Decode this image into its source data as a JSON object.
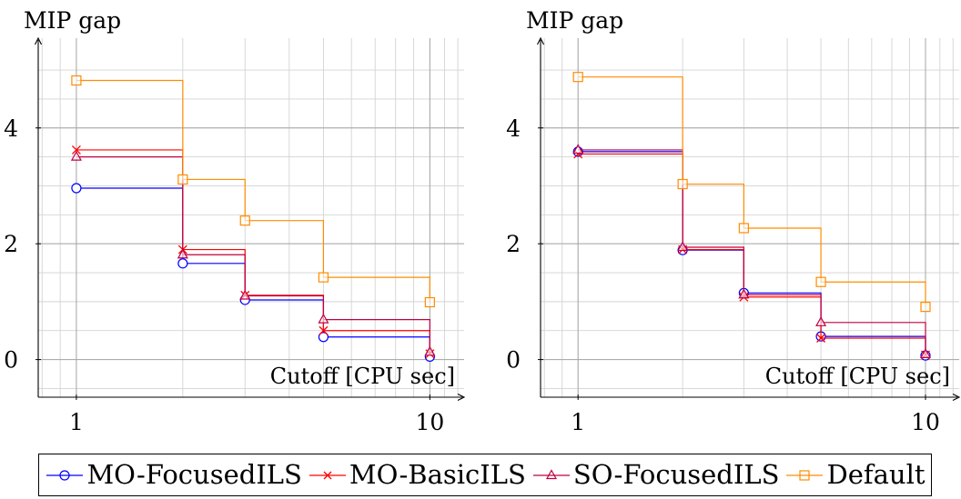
{
  "chart_data": [
    {
      "type": "line",
      "step": "post",
      "ylabel": "MIP gap",
      "xlabel": "Cutoff [CPU sec]",
      "xscale": "log",
      "xlim": [
        0.78,
        12.5
      ],
      "ylim": [
        -0.65,
        5.55
      ],
      "xticks": [
        {
          "value": 1,
          "label": "1"
        },
        {
          "value": 10,
          "label": "10"
        }
      ],
      "yticks": [
        {
          "value": 0,
          "label": "0"
        },
        {
          "value": 2,
          "label": "2"
        },
        {
          "value": 4,
          "label": "4"
        }
      ],
      "grid": true,
      "x": [
        1,
        2,
        3,
        5,
        10
      ],
      "series": [
        {
          "name": "MO-FocusedILS",
          "color": "#0000ff",
          "marker": "circle",
          "values": [
            2.96,
            1.66,
            1.03,
            0.39,
            0.05
          ]
        },
        {
          "name": "MO-BasicILS",
          "color": "#ff0000",
          "marker": "x",
          "values": [
            3.62,
            1.9,
            1.11,
            0.5,
            0.1
          ]
        },
        {
          "name": "SO-FocusedILS",
          "color": "#bf0040",
          "marker": "triangle",
          "values": [
            3.5,
            1.81,
            1.1,
            0.69,
            0.13
          ]
        },
        {
          "name": "Default",
          "color": "#ff8c00",
          "marker": "square",
          "values": [
            4.82,
            3.11,
            2.4,
            1.42,
            0.99
          ]
        }
      ]
    },
    {
      "type": "line",
      "step": "post",
      "ylabel": "MIP gap",
      "xlabel": "Cutoff [CPU sec]",
      "xscale": "log",
      "xlim": [
        0.78,
        12.5
      ],
      "ylim": [
        -0.65,
        5.55
      ],
      "xticks": [
        {
          "value": 1,
          "label": "1"
        },
        {
          "value": 10,
          "label": "10"
        }
      ],
      "yticks": [
        {
          "value": 0,
          "label": "0"
        },
        {
          "value": 2,
          "label": "2"
        },
        {
          "value": 4,
          "label": "4"
        }
      ],
      "grid": true,
      "x": [
        1,
        2,
        3,
        5,
        10
      ],
      "series": [
        {
          "name": "MO-FocusedILS",
          "color": "#0000ff",
          "marker": "circle",
          "values": [
            3.59,
            1.89,
            1.15,
            0.4,
            0.07
          ]
        },
        {
          "name": "MO-BasicILS",
          "color": "#ff0000",
          "marker": "x",
          "values": [
            3.55,
            1.9,
            1.08,
            0.37,
            0.08
          ]
        },
        {
          "name": "SO-FocusedILS",
          "color": "#bf0040",
          "marker": "triangle",
          "values": [
            3.62,
            1.94,
            1.12,
            0.64,
            0.09
          ]
        },
        {
          "name": "Default",
          "color": "#ff8c00",
          "marker": "square",
          "values": [
            4.88,
            3.03,
            2.27,
            1.34,
            0.91
          ]
        }
      ]
    }
  ],
  "legend": {
    "position": "bottom-center",
    "entries": [
      {
        "label": "MO-FocusedILS",
        "color": "#0000ff",
        "marker": "circle"
      },
      {
        "label": "MO-BasicILS",
        "color": "#ff0000",
        "marker": "x"
      },
      {
        "label": "SO-FocusedILS",
        "color": "#bf0040",
        "marker": "triangle"
      },
      {
        "label": "Default",
        "color": "#ff8c00",
        "marker": "square"
      }
    ]
  }
}
